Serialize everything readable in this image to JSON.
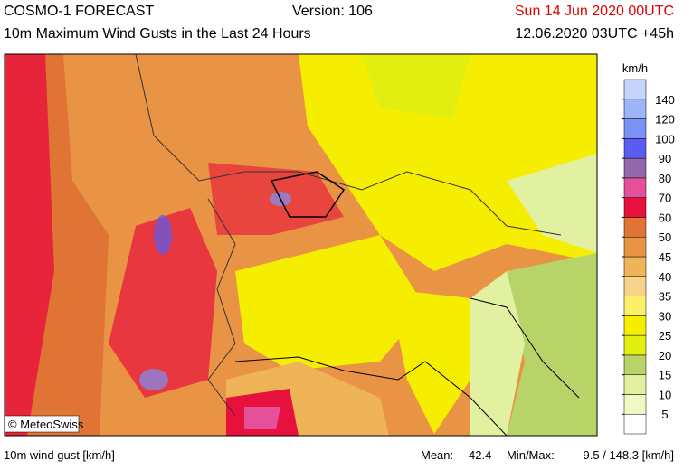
{
  "header": {
    "product": "COSMO-1 FORECAST",
    "version": "Version: 106",
    "valid": "Sun 14 Jun 2020 00UTC",
    "field": "10m Maximum Wind Gusts in the Last 24 Hours",
    "run": "12.06.2020 03UTC +45h"
  },
  "map": {
    "copyright": "© MeteoSwiss"
  },
  "legend": {
    "unit": "km/h",
    "levels": [
      5,
      10,
      15,
      20,
      25,
      30,
      35,
      40,
      45,
      50,
      60,
      70,
      80,
      90,
      100,
      120,
      140
    ],
    "colors": [
      "#ffffff",
      "#f2f8c4",
      "#e2f0a2",
      "#b8d468",
      "#e2ee10",
      "#f6ee00",
      "#fbf06a",
      "#f6d48a",
      "#f0b458",
      "#e89444",
      "#e07434",
      "#e8103c",
      "#e4509a",
      "#9466aa",
      "#5a5cf0",
      "#7a92f6",
      "#9cb4f8",
      "#c4d4fa"
    ]
  },
  "footer": {
    "field": "10m wind gust [km/h]",
    "mean_label": "Mean:",
    "mean": "42.4",
    "minmax_label": "Min/Max:",
    "minmax": "9.5 / 148.3 [km/h]"
  }
}
